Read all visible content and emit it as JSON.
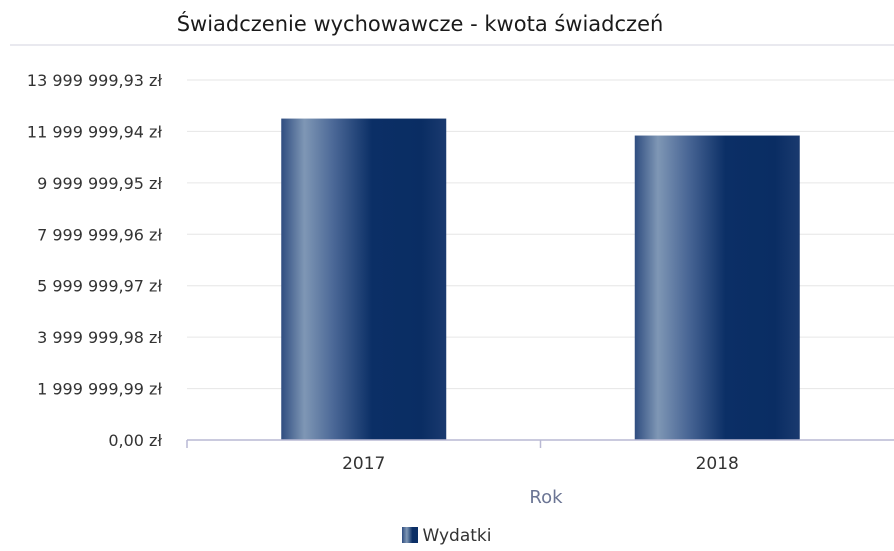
{
  "chart_data": {
    "type": "bar",
    "title": "Świadczenie wychowawcze - kwota świadczeń",
    "xlabel": "Rok",
    "ylabel": "",
    "categories": [
      "2017",
      "2018"
    ],
    "series": [
      {
        "name": "Wydatki",
        "values": [
          12500000,
          11840000
        ]
      }
    ],
    "ylim": [
      0,
      13999999.93
    ],
    "yticks": [
      {
        "value": 0,
        "label": "0,00 zł"
      },
      {
        "value": 1999999.99,
        "label": "1 999 999,99 zł"
      },
      {
        "value": 3999999.98,
        "label": "3 999 999,98 zł"
      },
      {
        "value": 5999999.97,
        "label": "5 999 999,97 zł"
      },
      {
        "value": 7999999.96,
        "label": "7 999 999,96 zł"
      },
      {
        "value": 9999999.95,
        "label": "9 999 999,95 zł"
      },
      {
        "value": 11999999.94,
        "label": "11 999 999,94 zł"
      },
      {
        "value": 13999999.93,
        "label": "13 999 999,93 zł"
      }
    ],
    "grid": true,
    "legend_position": "bottom-center",
    "colors": {
      "bar_dark": "#0b2f66",
      "bar_light": "#7f97b5",
      "axis_title": "#6b7594"
    }
  }
}
